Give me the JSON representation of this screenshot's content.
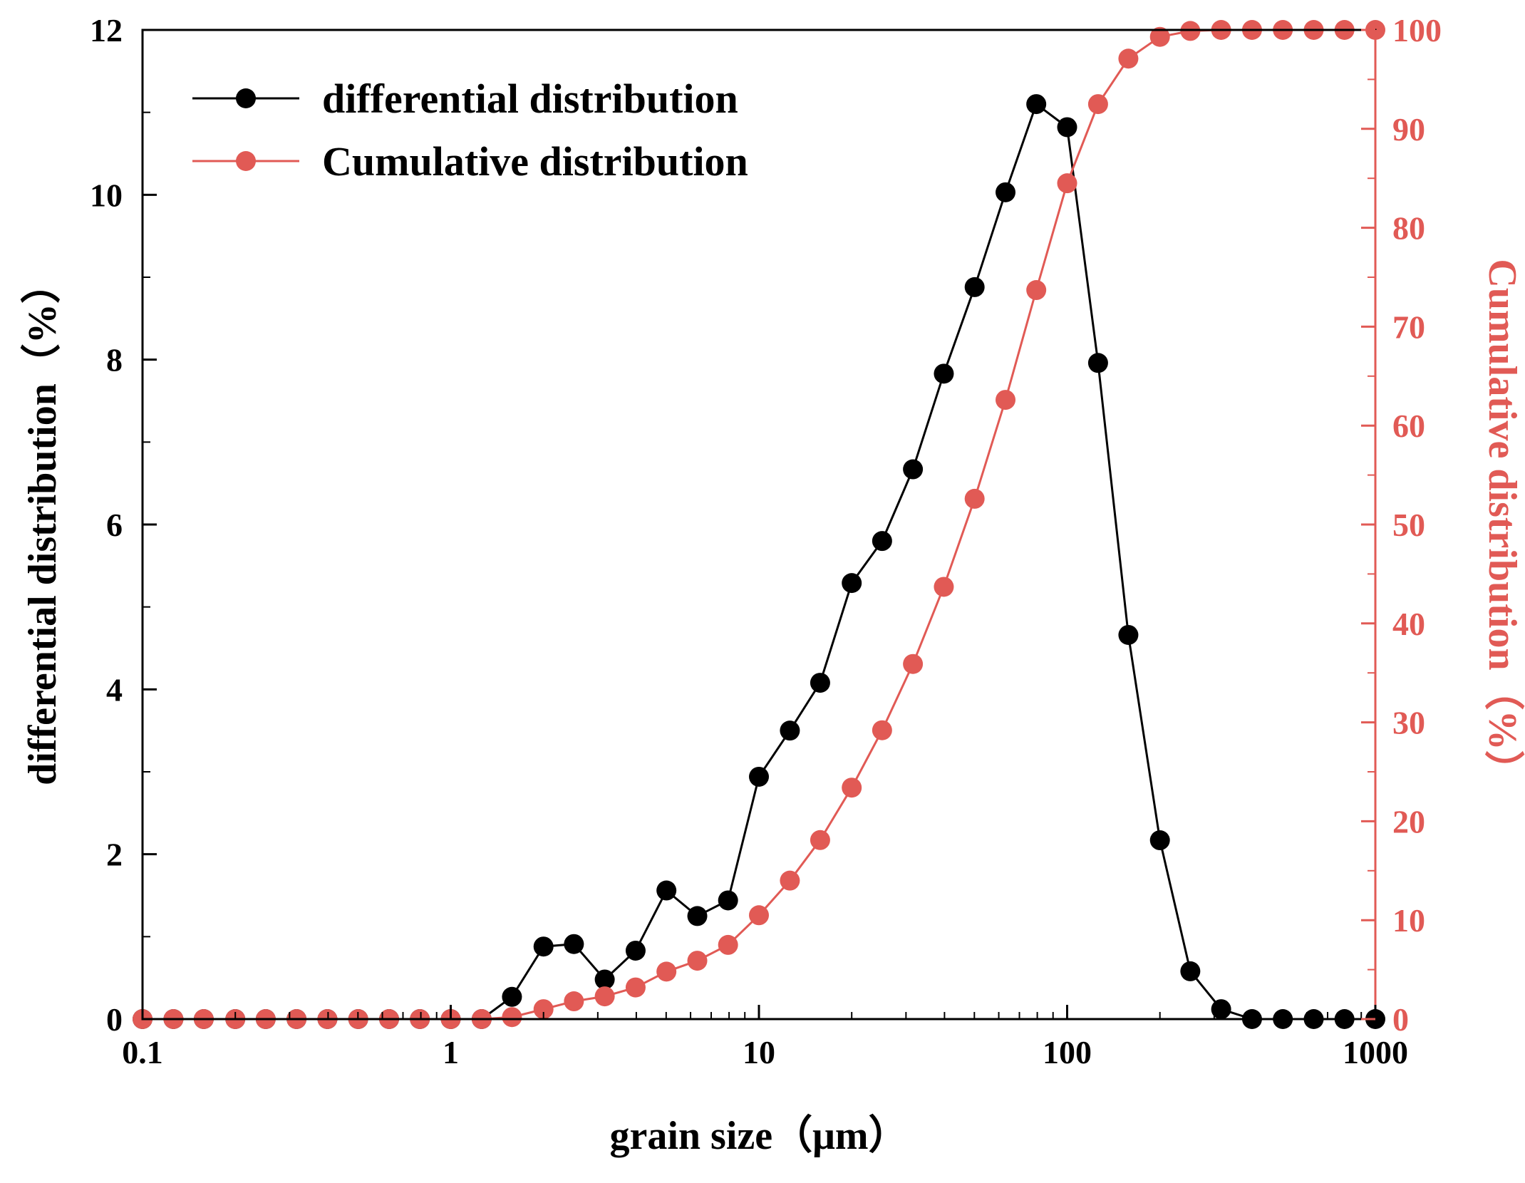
{
  "chart_data": {
    "type": "line",
    "xscale": "log",
    "xlim": [
      0.1,
      1000
    ],
    "xlabel": "grain size（μm）",
    "xticks": [
      0.1,
      1,
      10,
      100,
      1000
    ],
    "xtick_labels": [
      "0.1",
      "1",
      "10",
      "100",
      "1000"
    ],
    "y_left": {
      "label": "differential distribution（%）",
      "lim": [
        0,
        12
      ],
      "ticks": [
        0,
        2,
        4,
        6,
        8,
        10,
        12
      ],
      "tick_labels": [
        "0",
        "2",
        "4",
        "6",
        "8",
        "10",
        "12"
      ],
      "color": "#000000"
    },
    "y_right": {
      "label": "Cumulative distribution（%）",
      "lim": [
        0,
        100
      ],
      "ticks": [
        0,
        10,
        20,
        30,
        40,
        50,
        60,
        70,
        80,
        90,
        100
      ],
      "tick_labels": [
        "0",
        "10",
        "20",
        "30",
        "40",
        "50",
        "60",
        "70",
        "80",
        "90",
        "100"
      ],
      "color": "#e15a55"
    },
    "legend": {
      "placement": "top-left",
      "entries": [
        "differential distribution",
        "Cumulative distribution"
      ]
    },
    "series": [
      {
        "name": "differential distribution",
        "axis": "left",
        "color": "#000000",
        "x": [
          0.1,
          0.126,
          0.158,
          0.2,
          0.251,
          0.316,
          0.398,
          0.501,
          0.631,
          0.794,
          1.0,
          1.26,
          1.58,
          2.0,
          2.51,
          3.16,
          3.98,
          5.01,
          6.31,
          7.94,
          10.0,
          12.6,
          15.8,
          20.0,
          25.1,
          31.6,
          39.8,
          50.1,
          63.1,
          79.4,
          100,
          126,
          158,
          200,
          251,
          316,
          398,
          501,
          631,
          794,
          1000
        ],
        "values": [
          0,
          0,
          0,
          0,
          0,
          0,
          0,
          0,
          0,
          0,
          0,
          0,
          0.27,
          0.88,
          0.91,
          0.48,
          0.83,
          1.56,
          1.25,
          1.44,
          2.94,
          3.5,
          4.08,
          5.29,
          5.8,
          6.67,
          7.83,
          8.88,
          10.03,
          11.1,
          10.82,
          7.96,
          4.66,
          2.17,
          0.58,
          0.12,
          0,
          0,
          0,
          0,
          0
        ]
      },
      {
        "name": "Cumulative distribution",
        "axis": "right",
        "color": "#e15a55",
        "x": [
          0.1,
          0.126,
          0.158,
          0.2,
          0.251,
          0.316,
          0.398,
          0.501,
          0.631,
          0.794,
          1.0,
          1.26,
          1.58,
          2.0,
          2.51,
          3.16,
          3.98,
          5.01,
          6.31,
          7.94,
          10.0,
          12.6,
          15.8,
          20.0,
          25.1,
          31.6,
          39.8,
          50.1,
          63.1,
          79.4,
          100,
          126,
          158,
          200,
          251,
          316,
          398,
          501,
          631,
          794,
          1000
        ],
        "values": [
          0,
          0,
          0,
          0,
          0,
          0,
          0,
          0,
          0,
          0,
          0,
          0,
          0.2,
          1.0,
          1.8,
          2.3,
          3.2,
          4.8,
          5.9,
          7.5,
          10.5,
          14.0,
          18.1,
          23.4,
          29.2,
          35.9,
          43.7,
          52.6,
          62.6,
          73.7,
          84.5,
          92.5,
          97.1,
          99.3,
          99.9,
          100,
          100,
          100,
          100,
          100,
          100
        ]
      }
    ]
  }
}
